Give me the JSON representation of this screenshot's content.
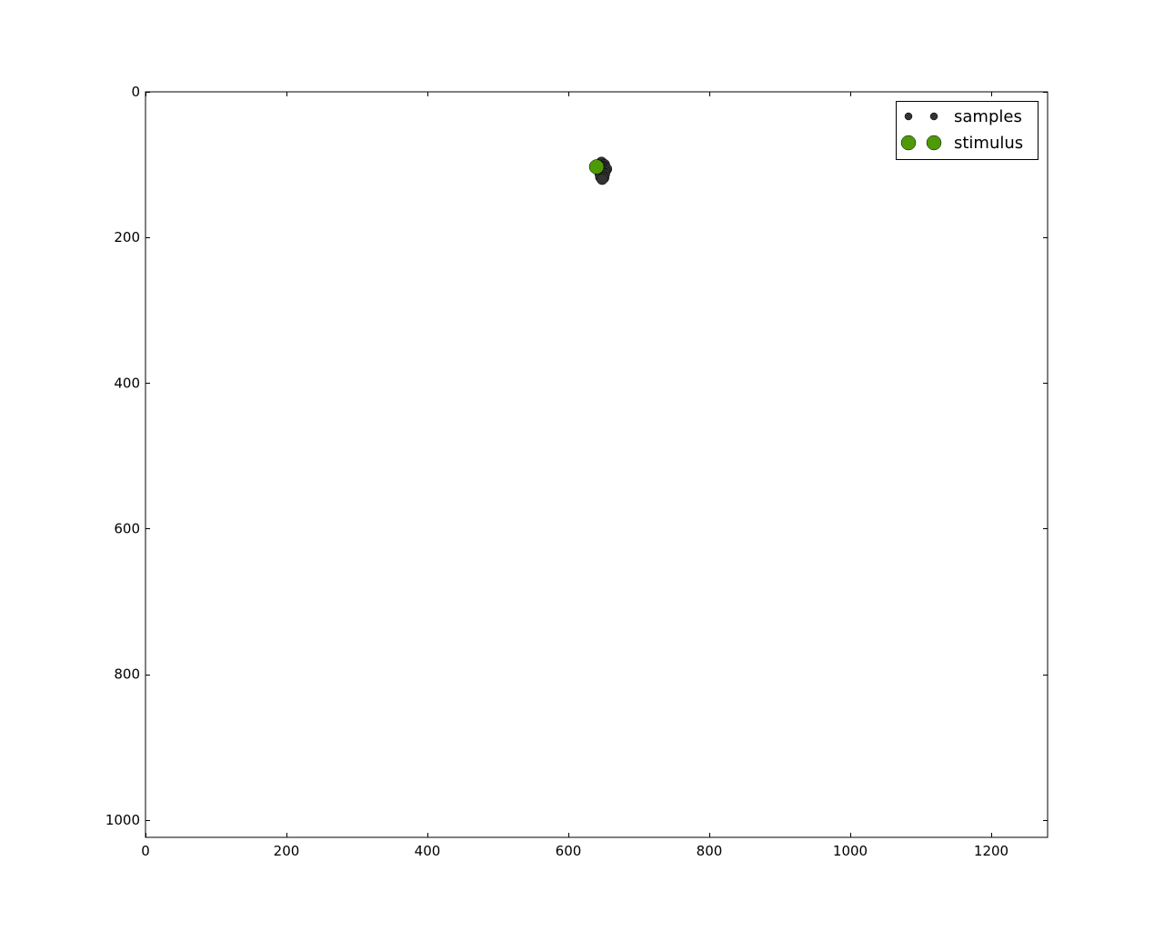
{
  "chart_data": {
    "type": "scatter",
    "title": "",
    "xlabel": "",
    "ylabel": "",
    "xlim": [
      0,
      1280
    ],
    "ylim": [
      1024,
      0
    ],
    "y_inverted": true,
    "grid": false,
    "x_ticks": [
      0,
      200,
      400,
      600,
      800,
      1000,
      1200
    ],
    "y_ticks": [
      0,
      200,
      400,
      600,
      800,
      1000
    ],
    "legend_position": "top-right",
    "series": [
      {
        "name": "samples",
        "color": "#333333",
        "marker": "circle",
        "points": [
          [
            647,
            97
          ],
          [
            651,
            100
          ],
          [
            644,
            101
          ],
          [
            649,
            103
          ],
          [
            645,
            105
          ],
          [
            651,
            104
          ],
          [
            654,
            106
          ],
          [
            642,
            106
          ],
          [
            648,
            107
          ],
          [
            646,
            109
          ],
          [
            652,
            109
          ],
          [
            649,
            111
          ],
          [
            645,
            112
          ],
          [
            651,
            113
          ],
          [
            648,
            115
          ],
          [
            646,
            117
          ],
          [
            650,
            118
          ],
          [
            648,
            120
          ]
        ]
      },
      {
        "name": "stimulus",
        "color": "#4e9a06",
        "marker": "circle",
        "points": [
          [
            640,
            103
          ]
        ]
      }
    ]
  }
}
